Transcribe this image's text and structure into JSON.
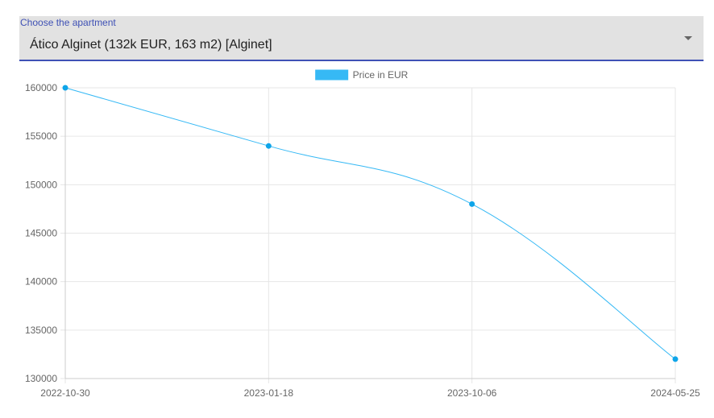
{
  "selector": {
    "label": "Choose the apartment",
    "value": "Ático Alginet (132k EUR, 163 m2) [Alginet]"
  },
  "colors": {
    "series": "#36b9f5",
    "point": "#0ea5e9",
    "grid": "#e6e6e6",
    "axis": "#cccccc",
    "accent": "#3f51b5"
  },
  "chart_data": {
    "type": "line",
    "title": "",
    "xlabel": "",
    "ylabel": "",
    "categories": [
      "2022-10-30",
      "2023-01-18",
      "2023-10-06",
      "2024-05-25"
    ],
    "series": [
      {
        "name": "Price in EUR",
        "values": [
          160000,
          154000,
          148000,
          132000
        ]
      }
    ],
    "ylim": [
      130000,
      160000
    ],
    "yticks": [
      160000,
      155000,
      150000,
      145000,
      140000,
      135000,
      130000
    ],
    "grid": true,
    "legend": "top-center"
  }
}
